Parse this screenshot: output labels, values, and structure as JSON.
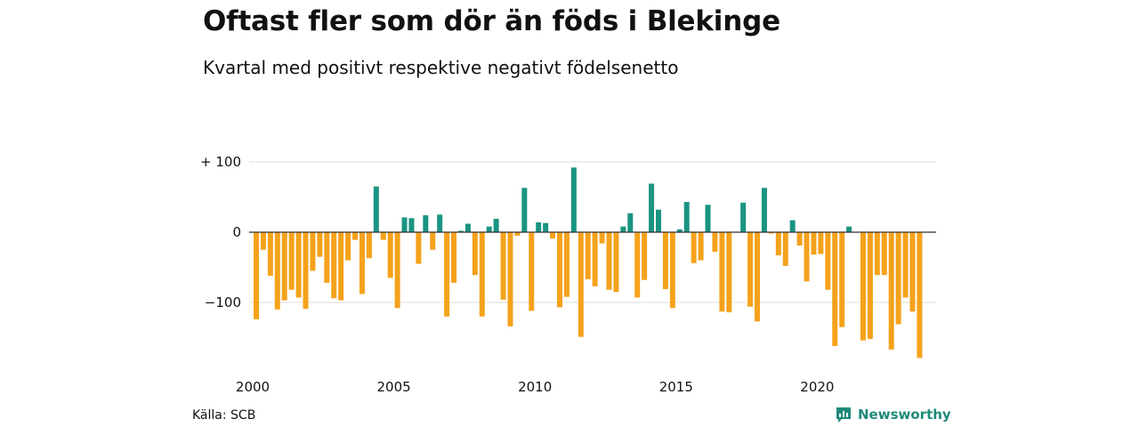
{
  "chart_data": {
    "type": "bar",
    "title": "Oftast fler som dör än föds i Blekinge",
    "subtitle": "Kvartal med positivt respektive negativt födelsenetto",
    "ylim": [
      -180,
      100
    ],
    "yticks": [
      {
        "value": 100,
        "label": "+ 100"
      },
      {
        "value": 0,
        "label": "0"
      },
      {
        "value": -100,
        "label": "−100"
      }
    ],
    "xticks": [
      {
        "value": 2000,
        "label": "2000"
      },
      {
        "value": 2005,
        "label": "2005"
      },
      {
        "value": 2010,
        "label": "2010"
      },
      {
        "value": 2015,
        "label": "2015"
      },
      {
        "value": 2020,
        "label": "2020"
      }
    ],
    "start_year": 2000,
    "positive_color": "#1a9482",
    "negative_color": "#f5a21b",
    "grid": true,
    "values": [
      -124,
      -25,
      -62,
      -110,
      -97,
      -82,
      -93,
      -109,
      -55,
      -35,
      -72,
      -94,
      -97,
      -40,
      -11,
      -88,
      -37,
      65,
      -11,
      -65,
      -108,
      21,
      20,
      -45,
      24,
      -25,
      25,
      -120,
      -72,
      2,
      12,
      -61,
      -120,
      8,
      19,
      -96,
      -134,
      -5,
      63,
      -112,
      14,
      13,
      -9,
      -107,
      -92,
      92,
      -149,
      -67,
      -77,
      -16,
      -82,
      -85,
      8,
      27,
      -93,
      -68,
      69,
      32,
      -81,
      -108,
      4,
      43,
      -44,
      -40,
      39,
      -28,
      -113,
      -114,
      0,
      42,
      -106,
      -127,
      63,
      -2,
      -33,
      -48,
      17,
      -19,
      -70,
      -32,
      -31,
      -82,
      -162,
      -135,
      8,
      0,
      -154,
      -152,
      -61,
      -61,
      -167,
      -131,
      -93,
      -113,
      -179
    ]
  },
  "source": "Källa: SCB",
  "brand": {
    "name": "Newsworthy",
    "icon": "newsworthy-logo-icon",
    "color": "#1f8a7a"
  }
}
